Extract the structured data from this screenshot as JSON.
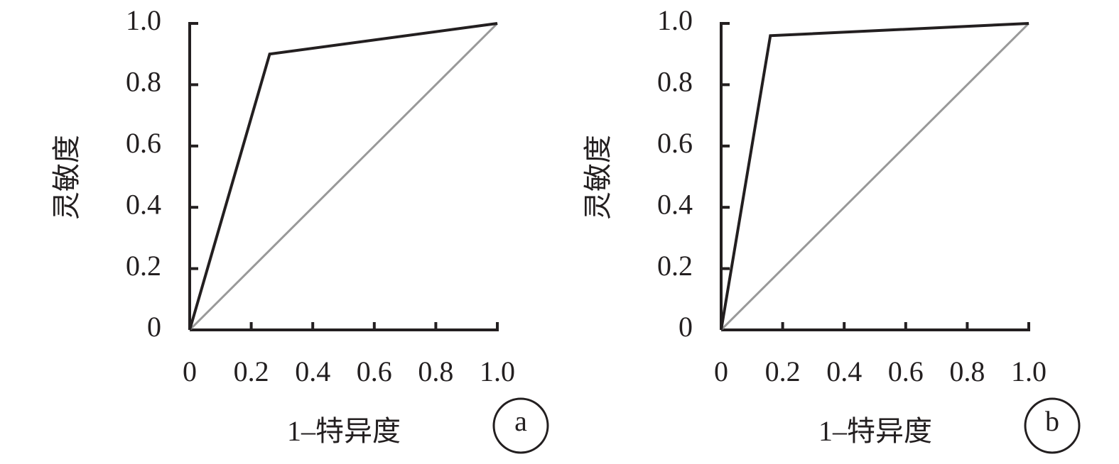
{
  "chart_data": [
    {
      "type": "line",
      "panel": "a",
      "x_label": "1–特异度",
      "y_label": "灵敏度",
      "xlim": [
        0,
        1
      ],
      "ylim": [
        0,
        1
      ],
      "xticks": [
        0,
        0.2,
        0.4,
        0.6,
        0.8,
        {
          "value": 1,
          "label": "1.0"
        }
      ],
      "yticks": [
        0,
        0.2,
        0.4,
        0.6,
        0.8,
        {
          "value": 1,
          "label": "1.0"
        }
      ],
      "series": [
        {
          "color": "#231f20",
          "x": [
            0,
            0.26,
            1
          ],
          "values": [
            0,
            0.9,
            1
          ]
        },
        {
          "color": "#999999",
          "x": [
            0,
            1
          ],
          "values": [
            0,
            1
          ]
        }
      ]
    },
    {
      "type": "line",
      "panel": "b",
      "x_label": "1–特异度",
      "y_label": "灵敏度",
      "xlim": [
        0,
        1
      ],
      "ylim": [
        0,
        1
      ],
      "xticks": [
        0,
        0.2,
        0.4,
        0.6,
        0.8,
        {
          "value": 1,
          "label": "1.0"
        }
      ],
      "yticks": [
        0,
        0.2,
        0.4,
        0.6,
        0.8,
        {
          "value": 1,
          "label": "1.0"
        }
      ],
      "series": [
        {
          "color": "#231f20",
          "x": [
            0,
            0.16,
            1
          ],
          "values": [
            0,
            0.96,
            1
          ]
        },
        {
          "color": "#999999",
          "x": [
            0,
            1
          ],
          "values": [
            0,
            1
          ]
        }
      ]
    }
  ]
}
